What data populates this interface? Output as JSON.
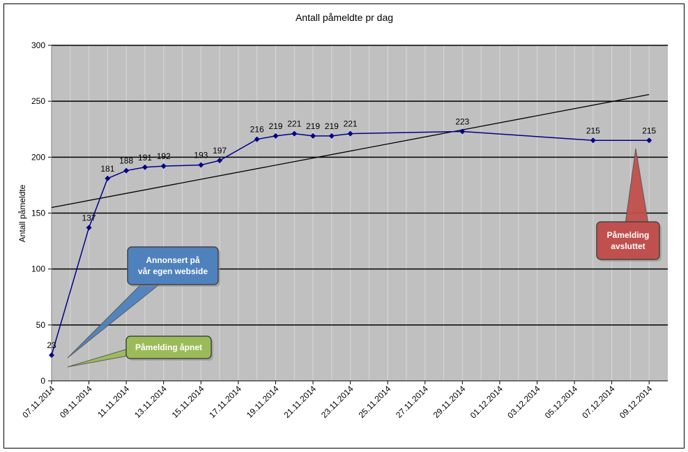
{
  "chart_data": {
    "type": "line",
    "title": "Antall påmeldte pr dag",
    "xlabel": "",
    "ylabel": "Antall påmeldte",
    "ylim": [
      0,
      300
    ],
    "yticks": [
      "0",
      "50",
      "100",
      "150",
      "200",
      "250",
      "300"
    ],
    "xticks": [
      "07.11.2014",
      "09.11.2014",
      "11.11.2014",
      "13.11.2014",
      "15.11.2014",
      "17.11.2014",
      "19.11.2014",
      "21.11.2014",
      "23.11.2014",
      "25.11.2014",
      "27.11.2014",
      "29.11.2014",
      "01.12.2014",
      "03.12.2014",
      "05.12.2014",
      "07.12.2014",
      "09.12.2014"
    ],
    "x_start": "2014-11-07",
    "x_end": "2014-12-10",
    "grid": true,
    "legend": "none",
    "colors": {
      "series": "#00008b",
      "trend": "#000000",
      "plot_bg": "#c0c0c0",
      "grid_major": "#000000",
      "grid_minor": "#d8d8d8"
    },
    "series": [
      {
        "points": [
          {
            "x": "2014-11-07",
            "y": 23
          },
          {
            "x": "2014-11-09",
            "y": 137
          },
          {
            "x": "2014-11-10",
            "y": 181
          },
          {
            "x": "2014-11-11",
            "y": 188
          },
          {
            "x": "2014-11-12",
            "y": 191
          },
          {
            "x": "2014-11-13",
            "y": 192
          },
          {
            "x": "2014-11-15",
            "y": 193
          },
          {
            "x": "2014-11-16",
            "y": 197
          },
          {
            "x": "2014-11-18",
            "y": 216
          },
          {
            "x": "2014-11-19",
            "y": 219
          },
          {
            "x": "2014-11-20",
            "y": 221
          },
          {
            "x": "2014-11-21",
            "y": 219
          },
          {
            "x": "2014-11-22",
            "y": 219
          },
          {
            "x": "2014-11-23",
            "y": 221
          },
          {
            "x": "2014-11-29",
            "y": 223
          },
          {
            "x": "2014-12-06",
            "y": 215
          },
          {
            "x": "2014-12-09",
            "y": 215
          }
        ]
      }
    ],
    "trendline": [
      {
        "x": "2014-11-07",
        "y": 155
      },
      {
        "x": "2014-12-09",
        "y": 256
      }
    ],
    "annotations": [
      {
        "text_lines": [
          "Annonsert på",
          "vår egen webside"
        ],
        "color": "#4f81bd"
      },
      {
        "text_lines": [
          "Påmelding åpnet"
        ],
        "color": "#9bbb59"
      },
      {
        "text_lines": [
          "Påmelding",
          "avsluttet"
        ],
        "color": "#c0504d"
      }
    ]
  }
}
